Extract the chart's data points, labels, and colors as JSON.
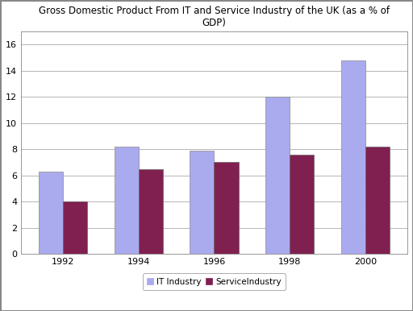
{
  "title": "Gross Domestic Product From IT and Service Industry of the UK (as a % of\nGDP)",
  "years": [
    "1992",
    "1994",
    "1996",
    "1998",
    "2000"
  ],
  "it_industry": [
    6.3,
    8.2,
    7.9,
    12.0,
    14.8
  ],
  "service_industry": [
    4.0,
    6.5,
    7.0,
    7.6,
    8.2
  ],
  "it_color": "#AAAAEE",
  "service_color": "#802050",
  "ylim": [
    0,
    17
  ],
  "yticks": [
    0,
    2,
    4,
    6,
    8,
    10,
    12,
    14,
    16
  ],
  "bar_width": 0.32,
  "legend_labels": [
    "IT Industry",
    "ServiceIndustry"
  ],
  "background_color": "#FFFFFF",
  "plot_bg_color": "#FFFFFF",
  "grid_color": "#AAAAAA",
  "title_fontsize": 8.5,
  "tick_fontsize": 8,
  "legend_fontsize": 7.5,
  "outer_border_color": "#AAAAAA"
}
